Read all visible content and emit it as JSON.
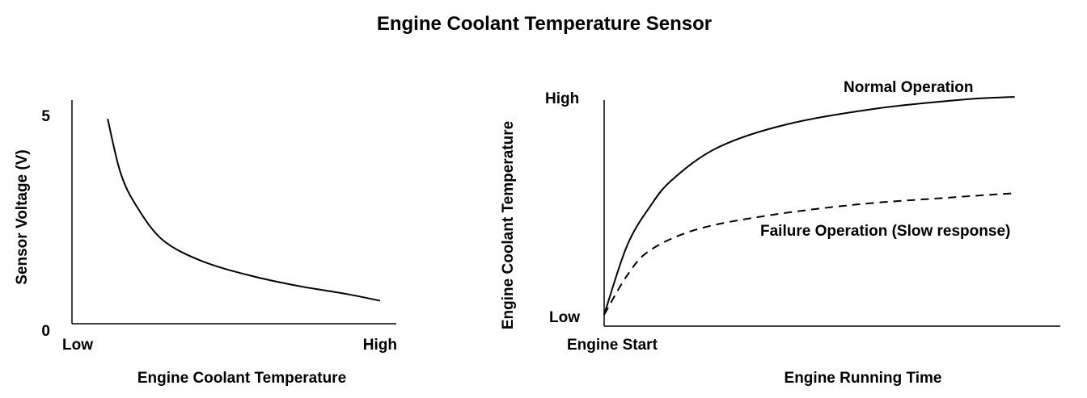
{
  "title": "Engine Coolant Temperature Sensor",
  "chart_data": [
    {
      "type": "line",
      "xlabel": "Engine Coolant Temperature",
      "ylabel": "Sensor Voltage (V)",
      "x_tick_labels": [
        "Low",
        "High"
      ],
      "y_tick_labels": [
        "0",
        "5"
      ],
      "ylim": [
        0,
        5
      ],
      "grid": false,
      "series": [
        {
          "x": [
            0.11,
            0.15,
            0.2,
            0.28,
            0.4,
            0.55,
            0.7,
            0.84,
            0.95
          ],
          "y": [
            4.9,
            3.6,
            2.8,
            2.0,
            1.5,
            1.15,
            0.9,
            0.72,
            0.55
          ]
        }
      ]
    },
    {
      "type": "line",
      "xlabel": "Engine Running Time",
      "ylabel": "Engine Coolant Temperature",
      "x_tick_labels": [
        "Engine Start"
      ],
      "y_tick_labels": [
        "Low",
        "High"
      ],
      "grid": false,
      "series": [
        {
          "name": "Normal Operation",
          "style": "solid",
          "x": [
            0,
            0.05,
            0.1,
            0.15,
            0.25,
            0.4,
            0.6,
            0.8,
            0.9
          ],
          "y": [
            0.05,
            0.35,
            0.52,
            0.64,
            0.78,
            0.88,
            0.95,
            0.99,
            1.0
          ]
        },
        {
          "name": "Failure Operation (Slow response)",
          "style": "dashed",
          "x": [
            0,
            0.05,
            0.1,
            0.2,
            0.35,
            0.55,
            0.75,
            0.9
          ],
          "y": [
            0.05,
            0.22,
            0.33,
            0.42,
            0.48,
            0.53,
            0.56,
            0.58
          ]
        }
      ]
    }
  ]
}
